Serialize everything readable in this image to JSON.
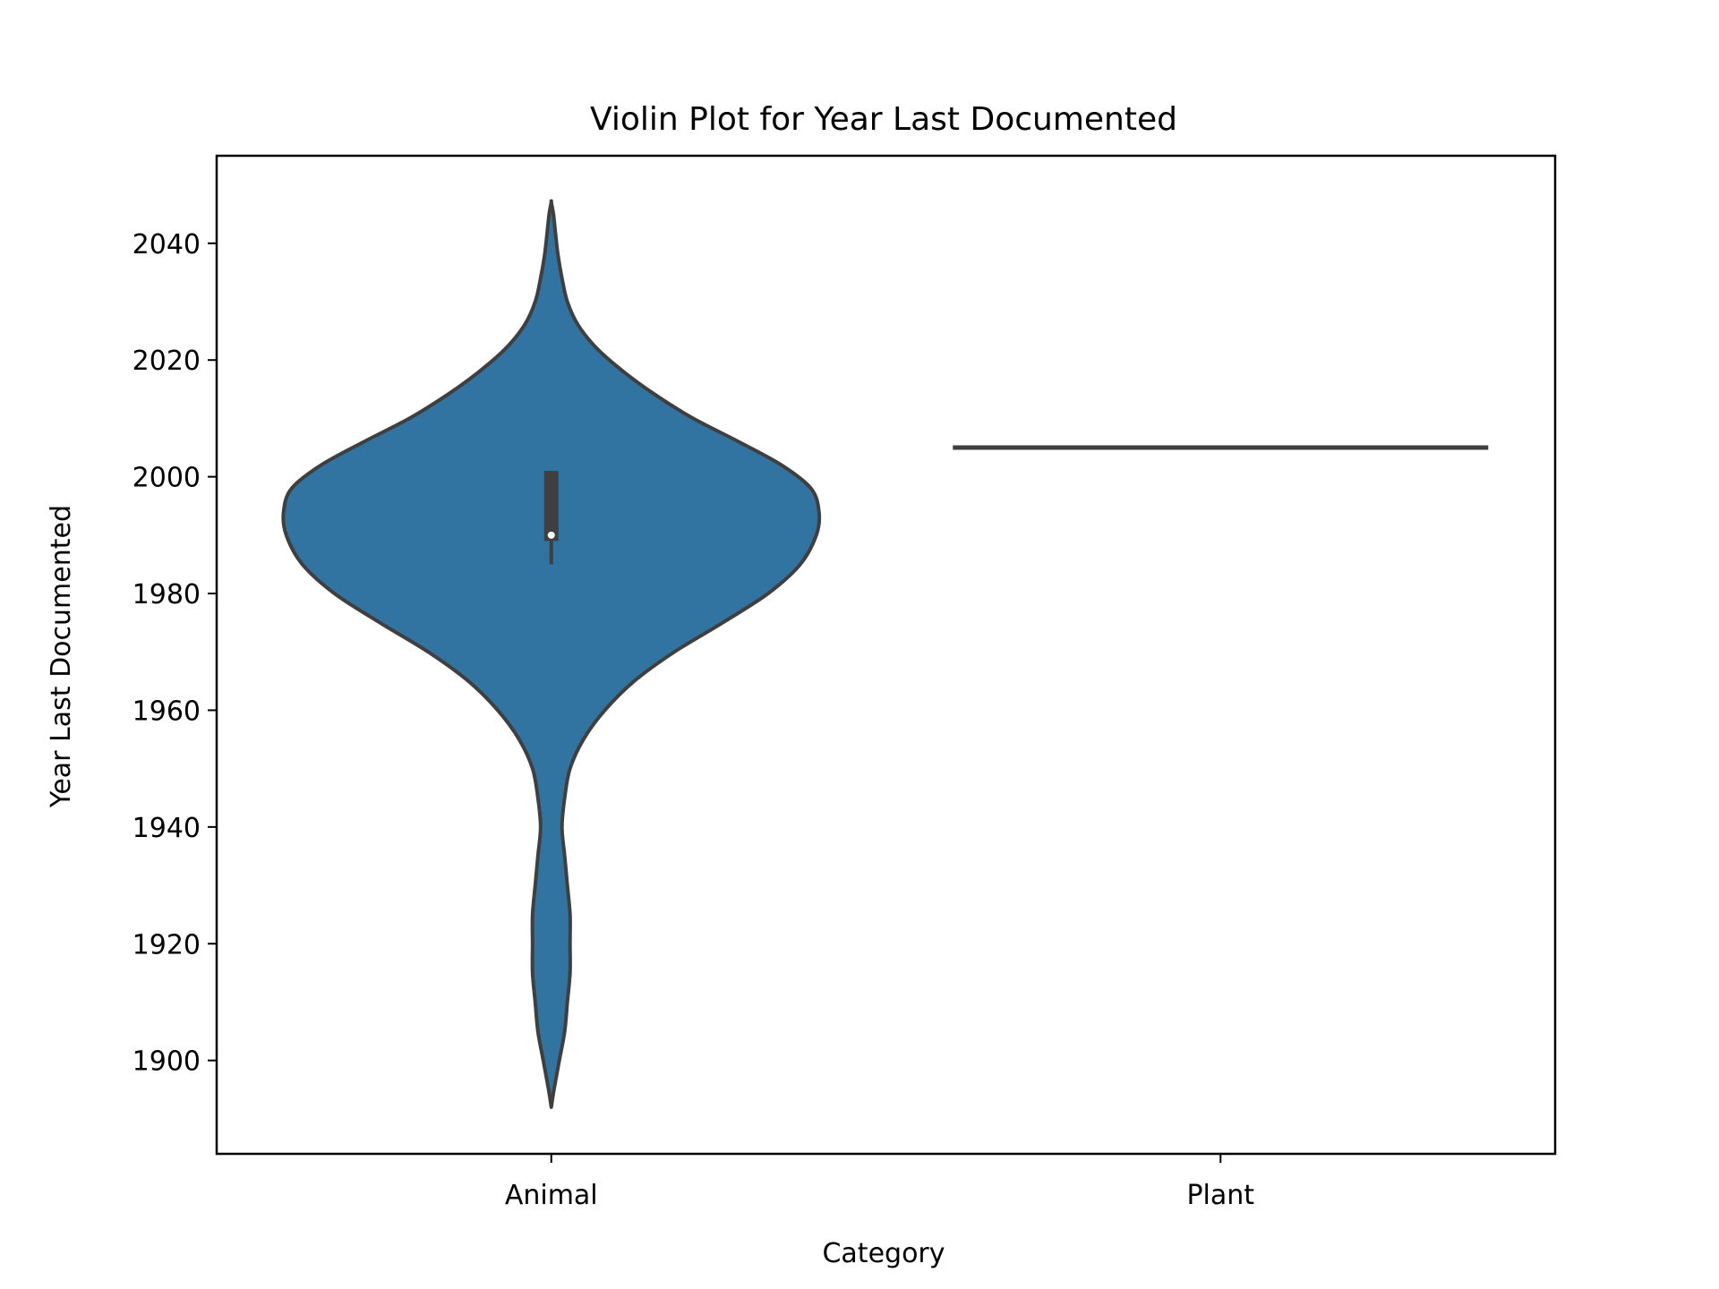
{
  "chart_data": {
    "type": "violin",
    "title": "Violin Plot for Year Last Documented",
    "xlabel": "Category",
    "ylabel": "Year Last Documented",
    "categories": [
      "Animal",
      "Plant"
    ],
    "ylim": [
      1884,
      2055
    ],
    "yticks": [
      1900,
      1920,
      1940,
      1960,
      1980,
      2000,
      2020,
      2040
    ],
    "grid": false,
    "legend": "none",
    "colors": {
      "violin_fill": "#3274a1",
      "violin_edge": "#3f3f3f",
      "box": "#3f3f3f",
      "median": "#ffffff",
      "axes": "#000000"
    },
    "series": [
      {
        "category": "Animal",
        "density": [
          [
            1892,
            0.0
          ],
          [
            1895,
            0.01
          ],
          [
            1900,
            0.03
          ],
          [
            1905,
            0.05
          ],
          [
            1910,
            0.06
          ],
          [
            1915,
            0.07
          ],
          [
            1920,
            0.07
          ],
          [
            1925,
            0.07
          ],
          [
            1930,
            0.06
          ],
          [
            1935,
            0.05
          ],
          [
            1940,
            0.04
          ],
          [
            1945,
            0.05
          ],
          [
            1950,
            0.07
          ],
          [
            1955,
            0.12
          ],
          [
            1960,
            0.2
          ],
          [
            1965,
            0.31
          ],
          [
            1970,
            0.46
          ],
          [
            1975,
            0.64
          ],
          [
            1980,
            0.81
          ],
          [
            1985,
            0.93
          ],
          [
            1990,
            0.99
          ],
          [
            1994,
            1.0
          ],
          [
            1998,
            0.97
          ],
          [
            2002,
            0.86
          ],
          [
            2006,
            0.7
          ],
          [
            2010,
            0.53
          ],
          [
            2014,
            0.39
          ],
          [
            2018,
            0.27
          ],
          [
            2022,
            0.17
          ],
          [
            2026,
            0.1
          ],
          [
            2030,
            0.06
          ],
          [
            2034,
            0.04
          ],
          [
            2038,
            0.025
          ],
          [
            2042,
            0.015
          ],
          [
            2045,
            0.008
          ],
          [
            2047,
            0.0
          ]
        ],
        "box": {
          "q1": 1989,
          "q3": 2001,
          "median": 1990,
          "whisker_low": 1985,
          "whisker_high": 2001
        }
      },
      {
        "category": "Plant",
        "single_value": 2005
      }
    ]
  }
}
